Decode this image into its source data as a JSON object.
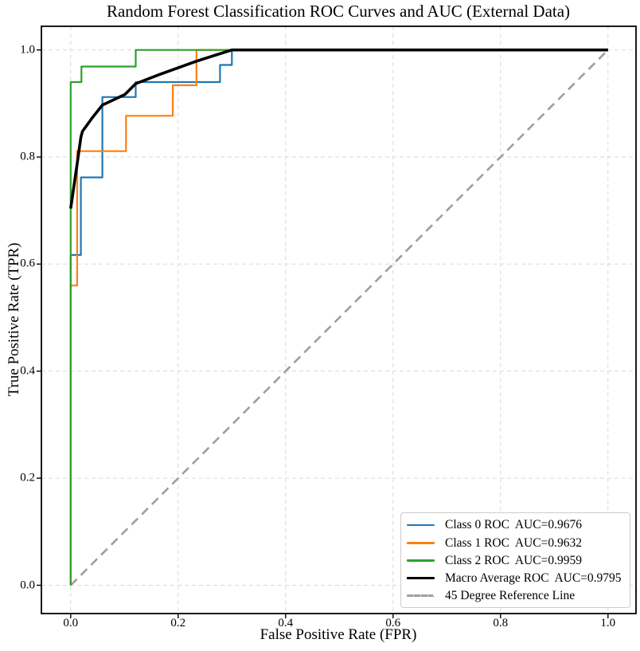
{
  "chart_data": {
    "type": "line",
    "subtype": "roc-step-curves",
    "title": "Random Forest Classification ROC Curves and AUC (External Data)",
    "xlabel": "False Positive Rate (FPR)",
    "ylabel": "True Positive Rate (TPR)",
    "xlim": [
      -0.05,
      1.05
    ],
    "ylim": [
      -0.05,
      1.05
    ],
    "grid": true,
    "grid_style": "dashed",
    "legend_position": "lower right",
    "x_ticks": [
      0.0,
      0.2,
      0.4,
      0.6,
      0.8,
      1.0
    ],
    "x_tick_labels": [
      "0.0",
      "0.2",
      "0.4",
      "0.6",
      "0.8",
      "1.0"
    ],
    "y_ticks": [
      0.0,
      0.2,
      0.4,
      0.6,
      0.8,
      1.0
    ],
    "y_tick_labels": [
      "0.0",
      "0.2",
      "0.4",
      "0.6",
      "0.8",
      "1.0"
    ],
    "draw_order": [
      "reference",
      "class0",
      "class1",
      "class2",
      "macro"
    ],
    "series": [
      {
        "id": "class0",
        "name": "Class 0 ROC  AUC=0.9676",
        "auc": 0.9676,
        "color": "#1f77b4",
        "line_width": 2.2,
        "dash": null,
        "points": [
          [
            0,
            0
          ],
          [
            0,
            0.617
          ],
          [
            0.019,
            0.617
          ],
          [
            0.019,
            0.762
          ],
          [
            0.059,
            0.762
          ],
          [
            0.059,
            0.912
          ],
          [
            0.121,
            0.912
          ],
          [
            0.121,
            0.94
          ],
          [
            0.278,
            0.94
          ],
          [
            0.278,
            0.972
          ],
          [
            0.3,
            0.972
          ],
          [
            0.3,
            1
          ],
          [
            1,
            1
          ]
        ]
      },
      {
        "id": "class1",
        "name": "Class 1 ROC  AUC=0.9632",
        "auc": 0.9632,
        "color": "#ff7f0e",
        "line_width": 2.2,
        "dash": null,
        "points": [
          [
            0,
            0
          ],
          [
            0,
            0.56
          ],
          [
            0.012,
            0.56
          ],
          [
            0.012,
            0.811
          ],
          [
            0.103,
            0.811
          ],
          [
            0.103,
            0.877
          ],
          [
            0.19,
            0.877
          ],
          [
            0.19,
            0.934
          ],
          [
            0.234,
            0.934
          ],
          [
            0.234,
            1
          ],
          [
            1,
            1
          ]
        ]
      },
      {
        "id": "class2",
        "name": "Class 2 ROC  AUC=0.9959",
        "auc": 0.9959,
        "color": "#2ca02c",
        "line_width": 2.2,
        "dash": null,
        "points": [
          [
            0,
            0
          ],
          [
            0,
            0.94
          ],
          [
            0.02,
            0.94
          ],
          [
            0.02,
            0.969
          ],
          [
            0.121,
            0.969
          ],
          [
            0.121,
            1
          ],
          [
            1,
            1
          ]
        ]
      },
      {
        "id": "macro",
        "name": "Macro Average ROC  AUC=0.9795",
        "auc": 0.9795,
        "color": "#000000",
        "line_width": 3.6,
        "dash": null,
        "points": [
          [
            0,
            0.704
          ],
          [
            0.012,
            0.787
          ],
          [
            0.019,
            0.837
          ],
          [
            0.022,
            0.848
          ],
          [
            0.04,
            0.873
          ],
          [
            0.059,
            0.897
          ],
          [
            0.101,
            0.917
          ],
          [
            0.121,
            0.937
          ],
          [
            0.165,
            0.954
          ],
          [
            0.234,
            0.979
          ],
          [
            0.278,
            0.993
          ],
          [
            0.3,
            1
          ],
          [
            1,
            1
          ]
        ]
      },
      {
        "id": "reference",
        "name": "45 Degree Reference Line",
        "auc": null,
        "color": "#9e9e9e",
        "line_width": 2.6,
        "dash": [
          11,
          7
        ],
        "points": [
          [
            0,
            0
          ],
          [
            1,
            1
          ]
        ]
      }
    ]
  },
  "colors": {
    "background": "#ffffff",
    "frame": "#000000",
    "grid": "#d9d9d9",
    "tick": "#000000",
    "text": "#000000",
    "legend_border": "#cccccc",
    "legend_background": "#ffffff"
  }
}
